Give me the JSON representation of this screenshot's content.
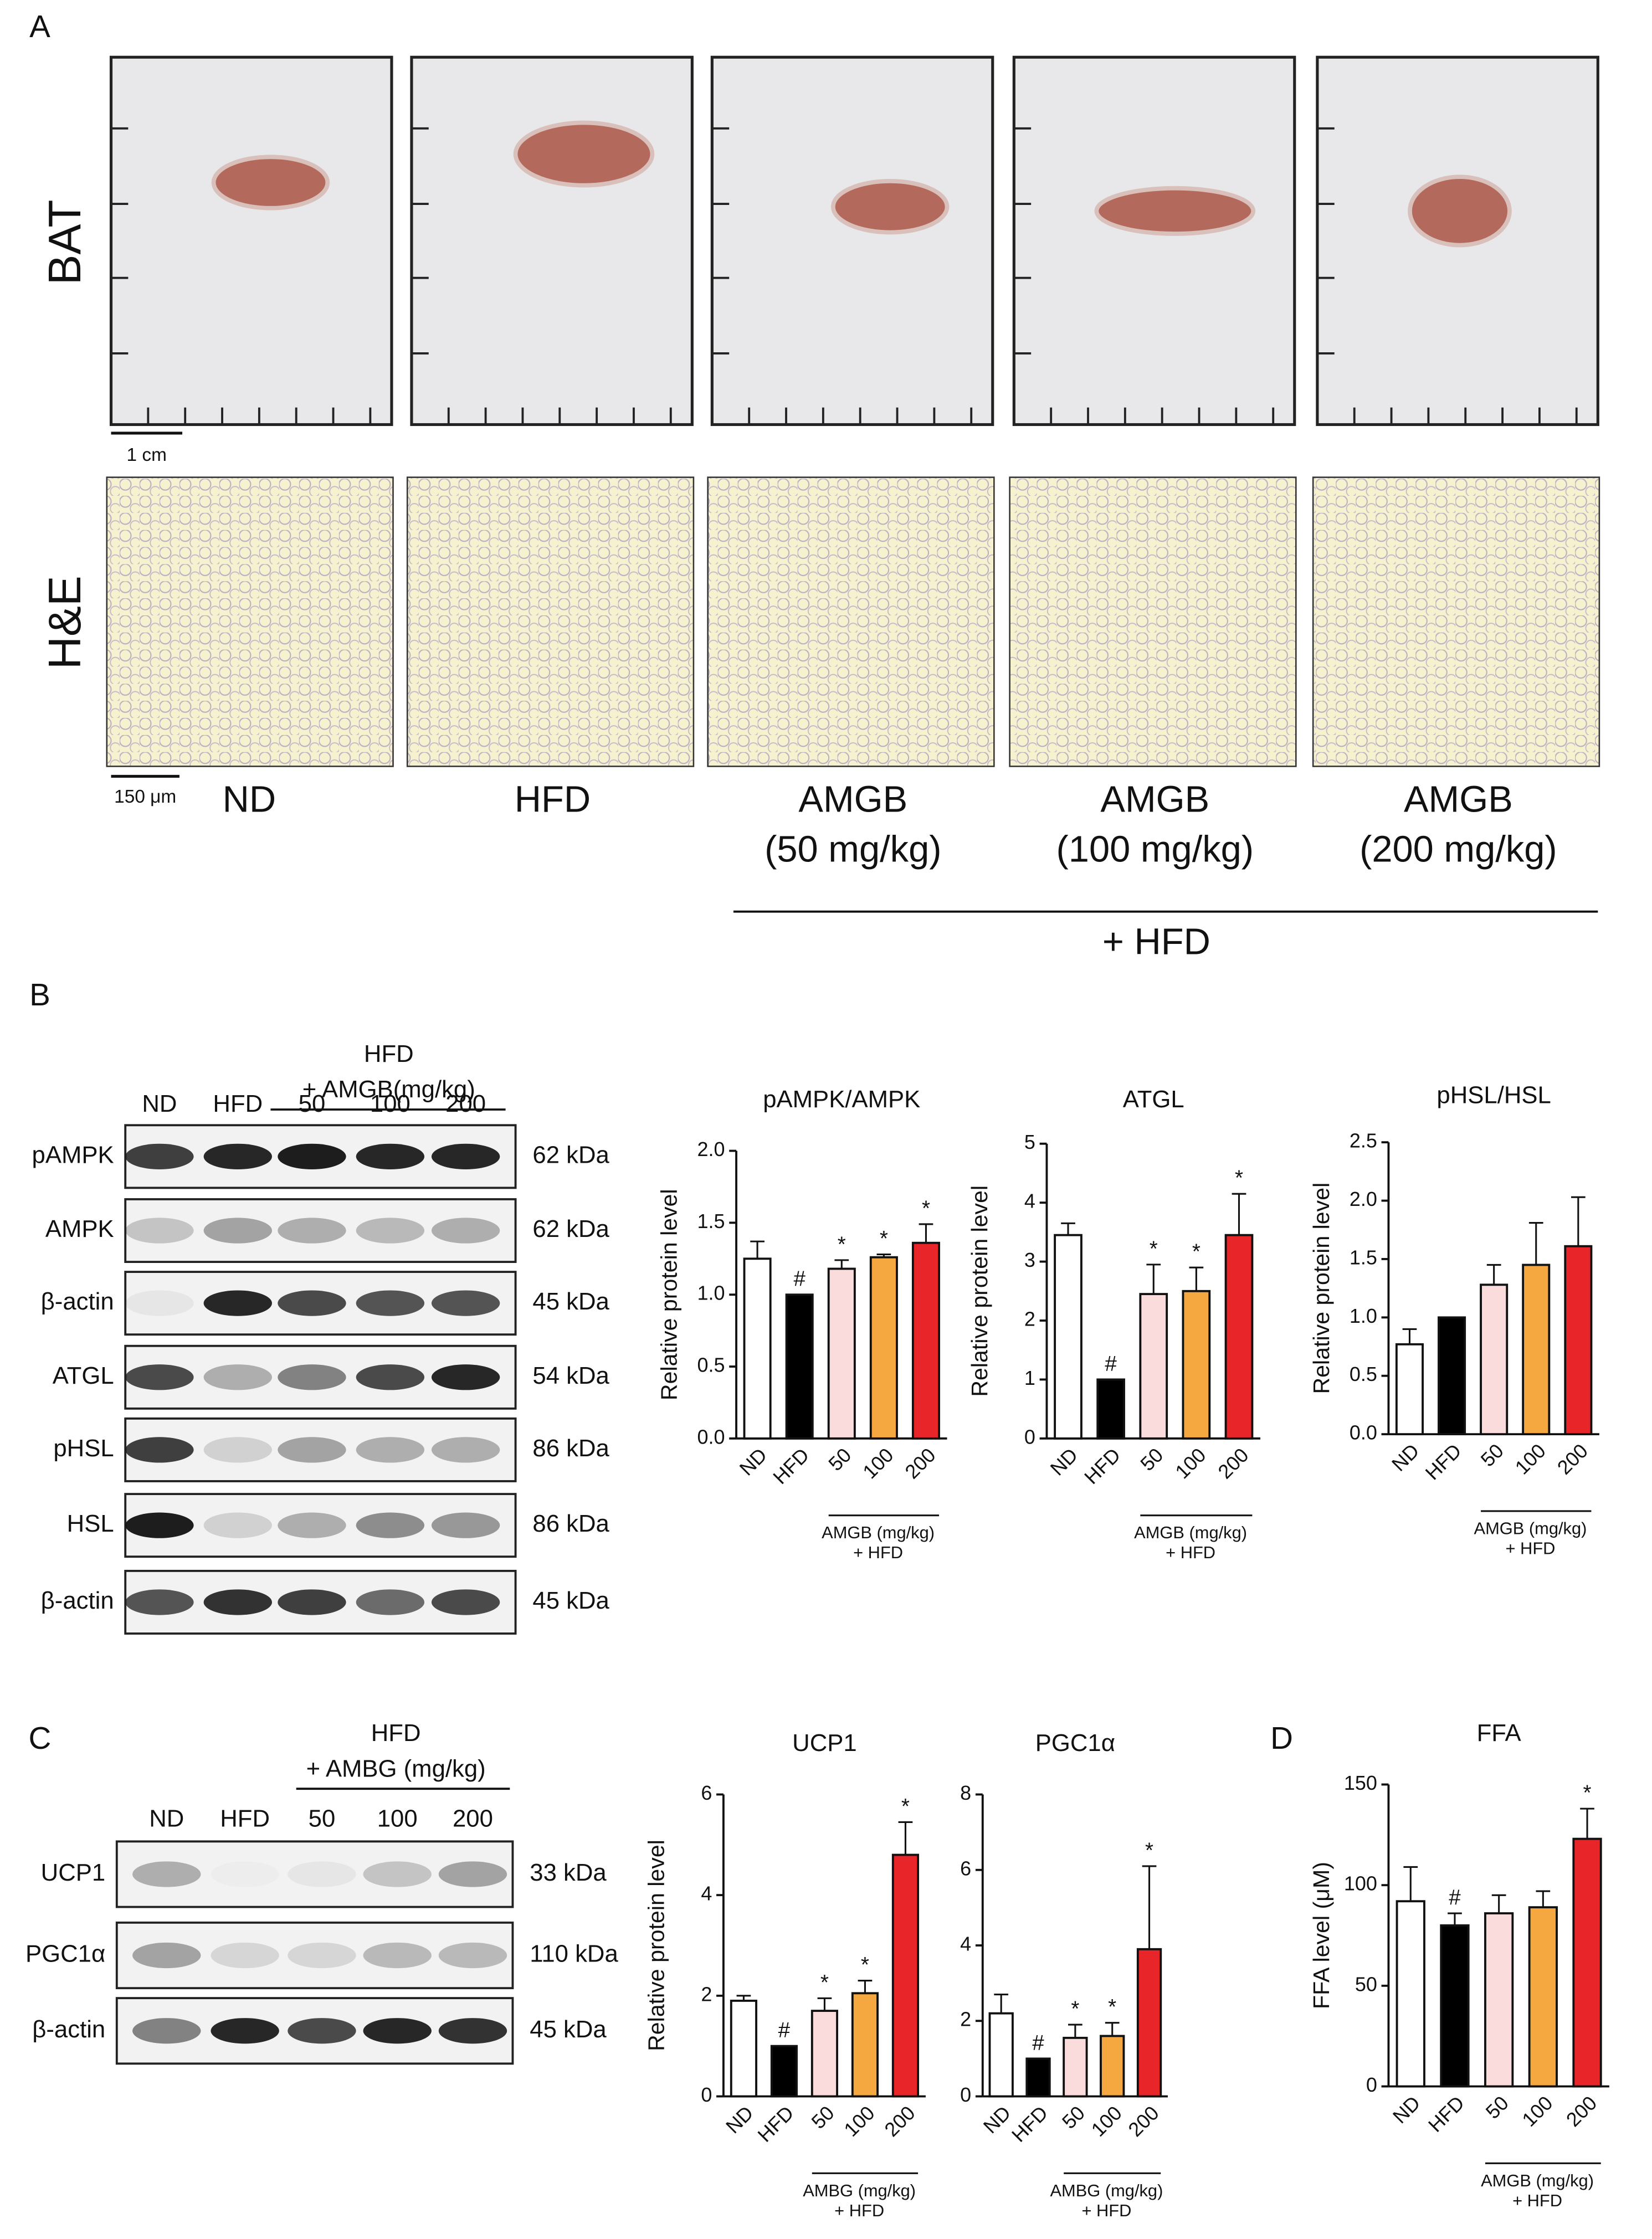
{
  "figure": {
    "panel_a": {
      "label": "A",
      "rows": [
        "BAT",
        "H&E"
      ],
      "scale_bars": [
        "1 cm",
        "150 μm"
      ],
      "groups": [
        {
          "lines": [
            "ND"
          ]
        },
        {
          "lines": [
            "HFD"
          ]
        },
        {
          "lines": [
            "AMGB",
            "(50 mg/kg)"
          ]
        },
        {
          "lines": [
            "AMGB",
            "(100 mg/kg)"
          ]
        },
        {
          "lines": [
            "AMGB",
            "(200 mg/kg)"
          ]
        }
      ],
      "group_note": "+ HFD"
    },
    "panel_b": {
      "label": "B",
      "header": [
        "HFD",
        "+ AMGB(mg/kg)"
      ],
      "lanes": [
        "ND",
        "HFD",
        "50",
        "100",
        "200"
      ],
      "rows": [
        {
          "name": "pAMPK",
          "size": "62 kDa"
        },
        {
          "name": "AMPK",
          "size": "62 kDa"
        },
        {
          "name": "β-actin",
          "size": "45 kDa"
        },
        {
          "name": "ATGL",
          "size": "54 kDa"
        },
        {
          "name": "pHSL",
          "size": "86 kDa"
        },
        {
          "name": "HSL",
          "size": "86 kDa"
        },
        {
          "name": "β-actin",
          "size": "45 kDa"
        }
      ]
    },
    "panel_c": {
      "label": "C",
      "header": [
        "HFD",
        "+ AMBG (mg/kg)"
      ],
      "lanes": [
        "ND",
        "HFD",
        "50",
        "100",
        "200"
      ],
      "rows": [
        {
          "name": "UCP1",
          "size": "33 kDa"
        },
        {
          "name": "PGC1α",
          "size": "110 kDa"
        },
        {
          "name": "β-actin",
          "size": "45 kDa"
        }
      ]
    },
    "panel_d": {
      "label": "D"
    }
  },
  "chart_data": [
    {
      "type": "bar",
      "title": "pAMPK/AMPK",
      "y_label": "Relative protein level",
      "categories": [
        "ND",
        "HFD",
        "50",
        "100",
        "200"
      ],
      "values": [
        1.25,
        1.0,
        1.18,
        1.26,
        1.36
      ],
      "errors": [
        0.12,
        0,
        0.06,
        0.02,
        0.13
      ],
      "markers": [
        null,
        "#",
        "*",
        "*",
        "*"
      ],
      "colors": [
        "#ffffff",
        "#000000",
        "#fadcdc",
        "#f5a840",
        "#e8262a"
      ],
      "ylim": [
        0,
        2
      ],
      "yticks": [
        {
          "value": 0,
          "label": "0.0"
        },
        {
          "value": 0.5,
          "label": "0.5"
        },
        {
          "value": 1,
          "label": "1.0"
        },
        {
          "value": 1.5,
          "label": "1.5"
        },
        {
          "value": 2,
          "label": "2.0"
        }
      ],
      "group_label": [
        "AMGB (mg/kg)",
        "+ HFD"
      ]
    },
    {
      "type": "bar",
      "title": "ATGL",
      "y_label": "Relative protein level",
      "categories": [
        "ND",
        "HFD",
        "50",
        "100",
        "200"
      ],
      "values": [
        3.45,
        1.0,
        2.45,
        2.5,
        3.45
      ],
      "errors": [
        0.2,
        0,
        0.5,
        0.4,
        0.7
      ],
      "markers": [
        null,
        "#",
        "*",
        "*",
        "*"
      ],
      "colors": [
        "#ffffff",
        "#000000",
        "#fadcdc",
        "#f5a840",
        "#e8262a"
      ],
      "ylim": [
        0,
        5
      ],
      "yticks": [
        0,
        1,
        2,
        3,
        4,
        5
      ],
      "group_label": [
        "AMGB (mg/kg)",
        "+ HFD"
      ]
    },
    {
      "type": "bar",
      "title": "pHSL/HSL",
      "y_label": "Relative protein level",
      "categories": [
        "ND",
        "HFD",
        "50",
        "100",
        "200"
      ],
      "values": [
        0.77,
        1.0,
        1.28,
        1.45,
        1.61
      ],
      "errors": [
        0.13,
        0,
        0.17,
        0.36,
        0.42
      ],
      "colors": [
        "#ffffff",
        "#000000",
        "#fadcdc",
        "#f5a840",
        "#e8262a"
      ],
      "ylim": [
        0,
        2.5
      ],
      "yticks": [
        {
          "value": 0,
          "label": "0.0"
        },
        {
          "value": 0.5,
          "label": "0.5"
        },
        {
          "value": 1,
          "label": "1.0"
        },
        {
          "value": 1.5,
          "label": "1.5"
        },
        {
          "value": 2,
          "label": "2.0"
        },
        {
          "value": 2.5,
          "label": "2.5"
        }
      ],
      "group_label": [
        "AMGB (mg/kg)",
        "+ HFD"
      ]
    },
    {
      "type": "bar",
      "title": "UCP1",
      "y_label": "Relative protein level",
      "categories": [
        "ND",
        "HFD",
        "50",
        "100",
        "200"
      ],
      "values": [
        1.9,
        1.0,
        1.7,
        2.05,
        4.8
      ],
      "errors": [
        0.1,
        0,
        0.25,
        0.25,
        0.65
      ],
      "markers": [
        null,
        "#",
        "*",
        "*",
        "*"
      ],
      "colors": [
        "#ffffff",
        "#000000",
        "#fadcdc",
        "#f5a840",
        "#e8262a"
      ],
      "ylim": [
        0,
        6
      ],
      "yticks": [
        0,
        2,
        4,
        6
      ],
      "group_label": [
        "AMBG (mg/kg)",
        "+ HFD"
      ]
    },
    {
      "type": "bar",
      "title": "PGC1α",
      "categories": [
        "ND",
        "HFD",
        "50",
        "100",
        "200"
      ],
      "values": [
        2.2,
        1.0,
        1.55,
        1.6,
        3.9
      ],
      "errors": [
        0.5,
        0,
        0.35,
        0.35,
        2.2
      ],
      "markers": [
        null,
        "#",
        "*",
        "*",
        "*"
      ],
      "colors": [
        "#ffffff",
        "#000000",
        "#fadcdc",
        "#f5a840",
        "#e8262a"
      ],
      "ylim": [
        0,
        8
      ],
      "yticks": [
        0,
        2,
        4,
        6,
        8
      ],
      "group_label": [
        "AMBG (mg/kg)",
        "+ HFD"
      ]
    },
    {
      "type": "bar",
      "title": "FFA",
      "y_label": "FFA level (μM)",
      "categories": [
        "ND",
        "HFD",
        "50",
        "100",
        "200"
      ],
      "values": [
        92,
        80,
        86,
        89,
        123
      ],
      "errors": [
        17,
        6,
        9,
        8,
        15
      ],
      "markers": [
        null,
        "#",
        null,
        null,
        "*"
      ],
      "colors": [
        "#ffffff",
        "#000000",
        "#fadcdc",
        "#f5a840",
        "#e8262a"
      ],
      "ylim": [
        0,
        150
      ],
      "yticks": [
        0,
        50,
        100,
        150
      ],
      "group_label": [
        "AMGB (mg/kg)",
        "+ HFD"
      ]
    }
  ]
}
